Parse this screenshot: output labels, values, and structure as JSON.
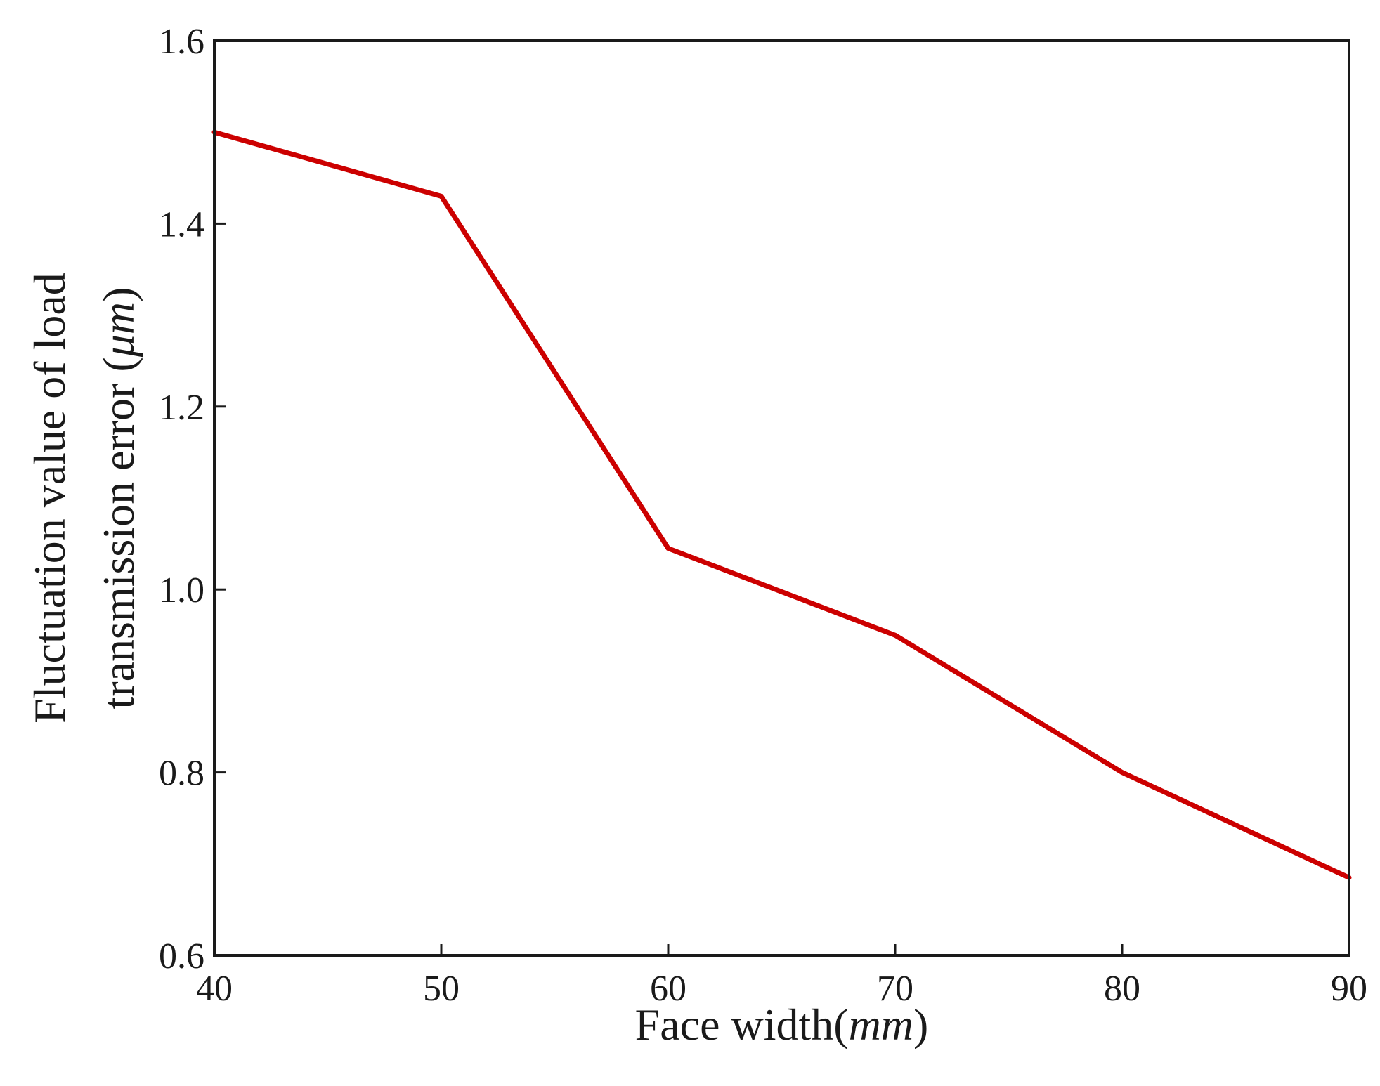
{
  "chart_data": {
    "type": "line",
    "title": "",
    "xlabel": {
      "prefix": "Face width(",
      "unit": "mm",
      "suffix": ")"
    },
    "ylabel": {
      "line1": "Fluctuation value of load",
      "line2_prefix": "transmission error (",
      "line2_unit": "μm",
      "line2_suffix": ")"
    },
    "xlim": [
      40,
      90
    ],
    "ylim": [
      0.6,
      1.6
    ],
    "xticks": [
      "40",
      "50",
      "60",
      "70",
      "80",
      "90"
    ],
    "yticks": [
      "0.6",
      "0.8",
      "1.0",
      "1.2",
      "1.4",
      "1.6"
    ],
    "grid": false,
    "legend": "none",
    "series": [
      {
        "color": "#cc0000",
        "x": [
          40,
          50,
          60,
          70,
          80,
          90
        ],
        "y": [
          1.5,
          1.43,
          1.045,
          0.95,
          0.8,
          0.685
        ]
      }
    ]
  }
}
